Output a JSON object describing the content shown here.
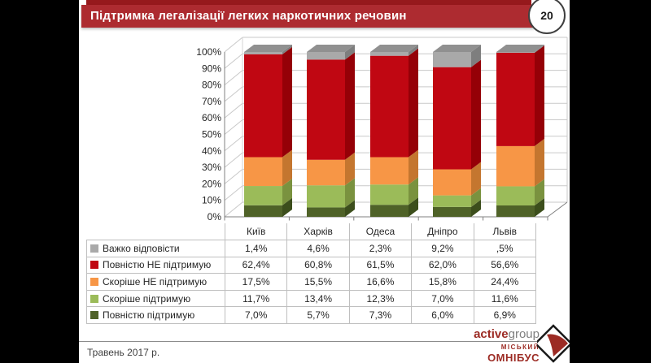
{
  "title_bar": {
    "title": "Підтримка легалізації легких наркотичних речовин",
    "page_number": "20"
  },
  "chart_data": {
    "type": "bar",
    "subtype": "3d-stacked-column-100",
    "title": "Підтримка легалізації легких наркотичних речовин",
    "categories": [
      "Київ",
      "Харків",
      "Одеса",
      "Дніпро",
      "Львів"
    ],
    "series": [
      {
        "name": "Повністю підтримую",
        "color": "#4f6228",
        "side_color": "#3c4e1c",
        "values": [
          7.0,
          5.7,
          7.3,
          6.0,
          6.9
        ]
      },
      {
        "name": "Скоріше підтримую",
        "color": "#9bbb59",
        "side_color": "#7a923f",
        "values": [
          11.7,
          13.4,
          12.3,
          7.0,
          11.6
        ]
      },
      {
        "name": "Скоріше НЕ підтримую",
        "color": "#f79646",
        "side_color": "#c4762f",
        "values": [
          17.5,
          15.5,
          16.6,
          15.8,
          24.4
        ]
      },
      {
        "name": "Повністю НЕ підтримую",
        "color": "#c00712",
        "side_color": "#950007",
        "values": [
          62.4,
          60.8,
          61.5,
          62.0,
          56.6
        ]
      },
      {
        "name": "Важко відповісти",
        "color": "#a9a9a9",
        "side_color": "#7e7e7e",
        "top_color": "#909090",
        "values": [
          1.4,
          4.6,
          2.3,
          9.2,
          0.5
        ]
      }
    ],
    "y_ticks": [
      "100%",
      "90%",
      "80%",
      "70%",
      "60%",
      "50%",
      "40%",
      "30%",
      "20%",
      "10%",
      "0%"
    ],
    "ylim": [
      0,
      100
    ],
    "grid": true,
    "legend_position": "table-below"
  },
  "table": {
    "header": [
      "Київ",
      "Харків",
      "Одеса",
      "Дніпро",
      "Львів"
    ],
    "rows": [
      {
        "label": "Важко відповісти",
        "color": "#a9a9a9",
        "values": [
          "1,4%",
          "4,6%",
          "2,3%",
          "9,2%",
          ",5%"
        ]
      },
      {
        "label": "Повністю НЕ підтримую",
        "color": "#c00712",
        "values": [
          "62,4%",
          "60,8%",
          "61,5%",
          "62,0%",
          "56,6%"
        ]
      },
      {
        "label": "Скоріше НЕ підтримую",
        "color": "#f79646",
        "values": [
          "17,5%",
          "15,5%",
          "16,6%",
          "15,8%",
          "24,4%"
        ]
      },
      {
        "label": "Скоріше підтримую",
        "color": "#9bbb59",
        "values": [
          "11,7%",
          "13,4%",
          "12,3%",
          "7,0%",
          "11,6%"
        ]
      },
      {
        "label": "Повністю підтримую",
        "color": "#4f6228",
        "values": [
          "7,0%",
          "5,7%",
          "7,3%",
          "6,0%",
          "6,9%"
        ]
      }
    ]
  },
  "footer": {
    "date": "Травень 2017 р.",
    "logo_active": "active",
    "logo_group": "group",
    "logo_misky": "МІСЬКИЙ",
    "logo_omnibus": "ОМНІБУС"
  }
}
